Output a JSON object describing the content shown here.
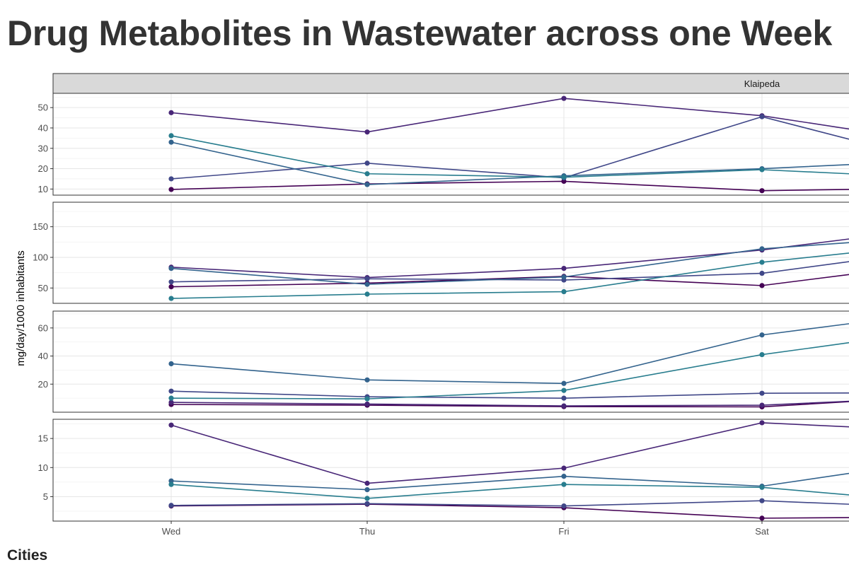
{
  "title": "Drug Metabolites in Wastewater across one Week",
  "legend_title": "Cities",
  "chart_data": {
    "type": "line",
    "facet_strip_label": "Klaipeda",
    "ylabel": "mg/day/1000 inhabitants",
    "xlabel": "",
    "categories": [
      "Wed",
      "Thu",
      "Fri",
      "Sat"
    ],
    "series_colors": [
      "#440154",
      "#482677",
      "#404788",
      "#33638D",
      "#287D8E"
    ],
    "panels": [
      {
        "ylim": [
          7,
          57
        ],
        "yticks": [
          10,
          20,
          30,
          40,
          50
        ],
        "series": [
          {
            "color": "#440154",
            "values": [
              9.8,
              12.5,
              13.8,
              9.2
            ],
            "tail": 9.8
          },
          {
            "color": "#482677",
            "values": [
              47.5,
              38.0,
              54.5,
              46.0
            ],
            "tail": 39.5
          },
          {
            "color": "#404788",
            "values": [
              15.0,
              22.7,
              15.5,
              45.5
            ],
            "tail": 34.5
          },
          {
            "color": "#33638D",
            "values": [
              33.0,
              12.2,
              16.5,
              20.0
            ],
            "tail": 22.0
          },
          {
            "color": "#287D8E",
            "values": [
              36.2,
              17.5,
              15.8,
              19.5
            ],
            "tail": 17.5
          }
        ]
      },
      {
        "ylim": [
          25,
          190
        ],
        "yticks": [
          50,
          100,
          150
        ],
        "series": [
          {
            "color": "#440154",
            "values": [
              52.0,
              58.0,
              69.0,
              54.0
            ],
            "tail": 72.0
          },
          {
            "color": "#482677",
            "values": [
              84.0,
              67.0,
              82.0,
              112.0
            ],
            "tail": 130.0
          },
          {
            "color": "#404788",
            "values": [
              60.0,
              65.0,
              63.0,
              74.0
            ],
            "tail": 93.0
          },
          {
            "color": "#33638D",
            "values": [
              82.0,
              56.0,
              68.0,
              114.0
            ],
            "tail": 124.0
          },
          {
            "color": "#287D8E",
            "values": [
              33.0,
              40.0,
              44.0,
              92.0
            ],
            "tail": 107.0
          }
        ]
      },
      {
        "ylim": [
          0,
          72
        ],
        "yticks": [
          20,
          40,
          60
        ],
        "series": [
          {
            "color": "#440154",
            "values": [
              5.5,
              5.0,
              4.0,
              3.8
            ],
            "tail": 7.5
          },
          {
            "color": "#482677",
            "values": [
              7.0,
              5.8,
              4.5,
              5.0
            ],
            "tail": 7.8
          },
          {
            "color": "#404788",
            "values": [
              15.0,
              11.0,
              10.0,
              13.5
            ],
            "tail": 13.7
          },
          {
            "color": "#33638D",
            "values": [
              34.5,
              23.0,
              20.5,
              55.0
            ],
            "tail": 63.0
          },
          {
            "color": "#287D8E",
            "values": [
              10.0,
              9.5,
              15.5,
              41.0
            ],
            "tail": 49.5
          }
        ]
      },
      {
        "ylim": [
          0.8,
          18.3
        ],
        "yticks": [
          5,
          10,
          15
        ],
        "series": [
          {
            "color": "#440154",
            "values": [
              3.4,
              3.7,
              3.1,
              1.3
            ],
            "tail": 1.4
          },
          {
            "color": "#482677",
            "values": [
              17.3,
              7.3,
              9.9,
              17.7
            ],
            "tail": 17.0
          },
          {
            "color": "#404788",
            "values": [
              3.5,
              3.8,
              3.4,
              4.3
            ],
            "tail": 3.7
          },
          {
            "color": "#33638D",
            "values": [
              7.7,
              6.2,
              8.5,
              6.8
            ],
            "tail": 9.0
          },
          {
            "color": "#287D8E",
            "values": [
              7.1,
              4.7,
              7.1,
              6.6
            ],
            "tail": 5.3
          }
        ]
      }
    ]
  }
}
